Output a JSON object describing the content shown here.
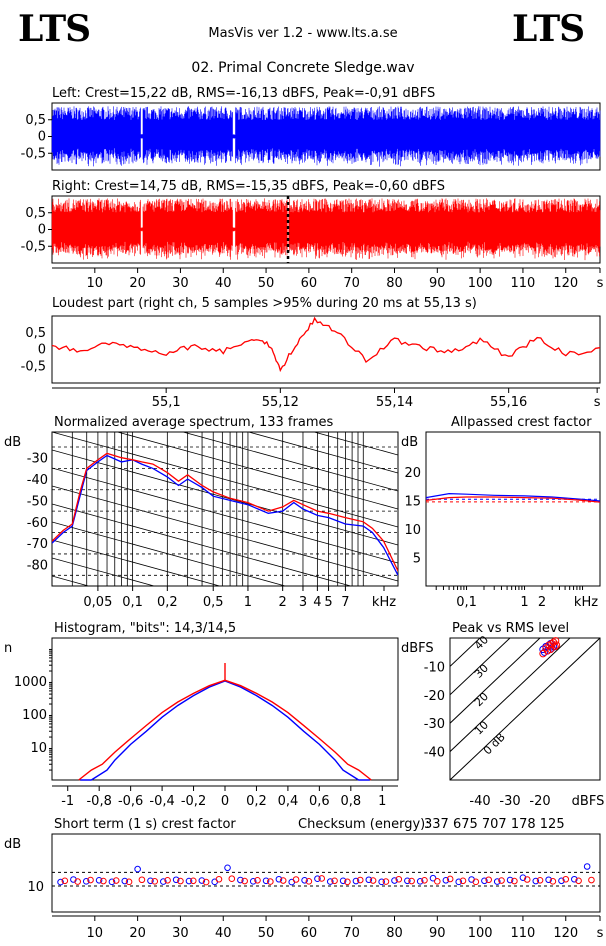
{
  "header": {
    "logo_left": "LTS",
    "logo_right": "LTS",
    "app_title": "MasVis ver 1.2 - www.lts.a.se",
    "file_name": "02. Primal Concrete Sledge.wav"
  },
  "colors": {
    "left": "#0000ff",
    "right": "#ff0000",
    "grid": "#000000"
  },
  "chart_data": [
    {
      "type": "area",
      "panel": "waveform-left",
      "title": "Left: Crest=15,22 dB, RMS=-16,13 dBFS, Peak=-0,91 dBFS",
      "channel": "left",
      "y_ticks": [
        "0,5",
        "0",
        "-0,5"
      ],
      "ylim": [
        -1,
        1
      ],
      "xlim": [
        0,
        128
      ],
      "envelope_peak": 0.9,
      "dropouts_s": [
        21,
        42.5
      ]
    },
    {
      "type": "area",
      "panel": "waveform-right",
      "title": "Right: Crest=14,75 dB, RMS=-15,35 dBFS, Peak=-0,60 dBFS",
      "channel": "right",
      "y_ticks": [
        "0,5",
        "0",
        "-0,5"
      ],
      "ylim": [
        -1,
        1
      ],
      "xlim": [
        0,
        128
      ],
      "envelope_peak": 0.93,
      "dropouts_s": [
        21,
        42.5
      ],
      "marker_s": 55.13,
      "x_ticks": [
        "10",
        "20",
        "30",
        "40",
        "50",
        "60",
        "70",
        "80",
        "90",
        "100",
        "110",
        "120",
        "s"
      ]
    },
    {
      "type": "line",
      "panel": "loudest-part",
      "title": "Loudest part (right ch, 5 samples >95% during 20 ms at 55,13 s)",
      "x_ticks": [
        "55,1",
        "55,12",
        "55,14",
        "55,16",
        "s"
      ],
      "y_ticks": [
        "0,5",
        "0",
        "-0,5"
      ],
      "xlim": [
        55.08,
        55.176
      ],
      "ylim": [
        -1,
        1
      ],
      "series": [
        {
          "x": [
            55.08,
            55.085,
            55.09,
            55.095,
            55.1,
            55.105,
            55.11,
            55.115,
            55.118,
            55.12,
            55.123,
            55.126,
            55.13,
            55.135,
            55.14,
            55.145,
            55.15,
            55.155,
            55.16,
            55.165,
            55.17,
            55.176
          ],
          "values": [
            0.12,
            -0.05,
            0.18,
            0.02,
            -0.1,
            0.1,
            -0.05,
            0.35,
            0.15,
            -0.6,
            0.2,
            0.9,
            0.5,
            -0.3,
            0.28,
            0.05,
            -0.1,
            0.3,
            -0.25,
            0.38,
            -0.15,
            0.02
          ]
        }
      ]
    },
    {
      "type": "line",
      "panel": "spectrum",
      "title": "Normalized average spectrum, 133 frames",
      "ylabel": "dB",
      "xlabel": "kHz",
      "x_ticks": [
        "0,05",
        "0,1",
        "0,2",
        "0,5",
        "1",
        "2",
        "3",
        "4",
        "5",
        "7",
        "kHz"
      ],
      "y_ticks": [
        "-30",
        "-40",
        "-50",
        "-60",
        "-70",
        "-80"
      ],
      "log_x": true,
      "xlim": [
        0.02,
        20
      ],
      "ylim": [
        -90,
        -18
      ],
      "series": [
        {
          "name": "left",
          "x": [
            0.02,
            0.025,
            0.03,
            0.035,
            0.04,
            0.05,
            0.06,
            0.08,
            0.1,
            0.12,
            0.15,
            0.2,
            0.25,
            0.3,
            0.4,
            0.5,
            0.7,
            1,
            1.5,
            2,
            2.5,
            3,
            4,
            5,
            7,
            10,
            12,
            15,
            20
          ],
          "values": [
            -70,
            -65,
            -62,
            -48,
            -36,
            -32,
            -29,
            -32,
            -31,
            -33,
            -35,
            -39,
            -43,
            -40,
            -44,
            -48,
            -50,
            -52,
            -56,
            -55,
            -51,
            -54,
            -57,
            -58,
            -61,
            -62,
            -65,
            -72,
            -85
          ]
        },
        {
          "name": "right",
          "x": [
            0.02,
            0.025,
            0.03,
            0.035,
            0.04,
            0.05,
            0.06,
            0.08,
            0.1,
            0.12,
            0.15,
            0.2,
            0.25,
            0.3,
            0.4,
            0.5,
            0.7,
            1,
            1.5,
            2,
            2.5,
            3,
            4,
            5,
            7,
            10,
            12,
            15,
            20
          ],
          "values": [
            -69,
            -64,
            -61,
            -46,
            -35,
            -31,
            -28,
            -30,
            -31,
            -32,
            -33,
            -37,
            -41,
            -38,
            -43,
            -46,
            -49,
            -51,
            -55,
            -53,
            -50,
            -52,
            -55,
            -56,
            -58,
            -60,
            -63,
            -69,
            -83
          ]
        }
      ]
    },
    {
      "type": "line",
      "panel": "allpassed-crest",
      "title": "Allpassed crest factor",
      "ylabel": "dB",
      "xlabel": "kHz",
      "x_ticks": [
        "0,1",
        "1",
        "2",
        "kHz"
      ],
      "y_ticks": [
        "20",
        "15",
        "10",
        "5"
      ],
      "log_x": true,
      "xlim": [
        0.02,
        20
      ],
      "ylim": [
        0,
        27
      ],
      "series": [
        {
          "name": "left",
          "x": [
            0.02,
            0.05,
            0.1,
            0.3,
            1,
            3,
            10,
            20
          ],
          "values": [
            15.5,
            16.2,
            16.1,
            15.9,
            15.8,
            15.6,
            15.2,
            14.9
          ]
        },
        {
          "name": "right",
          "x": [
            0.02,
            0.05,
            0.1,
            0.3,
            1,
            3,
            10,
            20
          ],
          "values": [
            15.0,
            15.5,
            15.6,
            15.6,
            15.5,
            15.4,
            15.0,
            14.7
          ]
        }
      ],
      "ref_lines": [
        15.22,
        14.75
      ]
    },
    {
      "type": "line",
      "panel": "histogram",
      "title": "Histogram, \"bits\": 14,3/14,5",
      "ylabel": "n",
      "x_ticks": [
        "-1",
        "-0,8",
        "-0,6",
        "-0,4",
        "-0,2",
        "0",
        "0,2",
        "0,4",
        "0,6",
        "0,8",
        "1"
      ],
      "y_ticks": [
        "1000",
        "100",
        "10"
      ],
      "log_y": true,
      "xlim": [
        -1.1,
        1.1
      ],
      "ylim": [
        1,
        20000
      ],
      "series": [
        {
          "name": "left",
          "x": [
            -0.92,
            -0.85,
            -0.75,
            -0.7,
            -0.6,
            -0.5,
            -0.4,
            -0.3,
            -0.2,
            -0.1,
            0,
            0.1,
            0.2,
            0.3,
            0.4,
            0.5,
            0.6,
            0.7,
            0.75,
            0.85,
            0.92
          ],
          "values": [
            1,
            1,
            2,
            4,
            12,
            30,
            80,
            180,
            360,
            650,
            1000,
            650,
            360,
            180,
            80,
            30,
            12,
            4,
            2,
            1,
            1
          ]
        },
        {
          "name": "right",
          "x": [
            -0.93,
            -0.85,
            -0.78,
            -0.7,
            -0.6,
            -0.5,
            -0.4,
            -0.3,
            -0.2,
            -0.1,
            0,
            0.1,
            0.2,
            0.3,
            0.4,
            0.5,
            0.6,
            0.7,
            0.78,
            0.85,
            0.93
          ],
          "values": [
            1,
            2,
            3,
            7,
            18,
            45,
            110,
            230,
            420,
            720,
            1050,
            720,
            420,
            230,
            110,
            45,
            18,
            7,
            3,
            2,
            1
          ]
        }
      ],
      "spike": {
        "x": 0,
        "value": 3500
      }
    },
    {
      "type": "scatter",
      "panel": "peak-vs-rms",
      "title": "Peak vs RMS level",
      "ylabel": "dBFS",
      "xlabel": "dBFS",
      "x_ticks": [
        "-40",
        "-30",
        "-20",
        "dBFS"
      ],
      "y_ticks": [
        "-10",
        "-20",
        "-30",
        "-40"
      ],
      "diagonal_labels": [
        "40",
        "30",
        "20",
        "10",
        "0 dB"
      ],
      "xlim": [
        -50,
        0
      ],
      "ylim": [
        -50,
        0
      ],
      "series": [
        {
          "name": "left",
          "x": [
            -19,
            -18,
            -17,
            -16,
            -18.5,
            -17.5,
            -16.5,
            -15.5
          ],
          "values": [
            -4,
            -3,
            -2.5,
            -3.5,
            -5,
            -4.5,
            -2,
            -3
          ]
        },
        {
          "name": "right",
          "x": [
            -18,
            -17,
            -16,
            -15,
            -17.5,
            -16.5,
            -15.5,
            -14.5,
            -19,
            -14.8
          ],
          "values": [
            -3.5,
            -2.5,
            -2,
            -3,
            -4.5,
            -4,
            -1.5,
            -2.5,
            -5.5,
            -1
          ]
        }
      ]
    },
    {
      "type": "scatter",
      "panel": "short-term-crest",
      "title": "Short term (1 s) crest factor",
      "checksum_label": "Checksum (energy):",
      "checksum_value": "337 675 707 178 125",
      "ylabel": "dB",
      "y_ticks": [
        "10"
      ],
      "x_ticks": [
        "10",
        "20",
        "30",
        "40",
        "50",
        "60",
        "70",
        "80",
        "90",
        "100",
        "110",
        "120",
        "s"
      ],
      "xlim": [
        0,
        128
      ],
      "ylim": [
        0,
        30
      ],
      "series": [
        {
          "name": "left",
          "x": [
            2,
            5,
            8,
            11,
            14,
            17,
            20,
            23,
            26,
            29,
            32,
            35,
            38,
            41,
            44,
            47,
            50,
            53,
            56,
            59,
            62,
            65,
            68,
            71,
            74,
            77,
            80,
            83,
            86,
            89,
            92,
            95,
            98,
            101,
            104,
            107,
            110,
            113,
            116,
            119,
            122,
            125
          ],
          "values": [
            11.5,
            12.5,
            11.8,
            12.2,
            11.6,
            11.9,
            16.5,
            12.0,
            11.7,
            12.4,
            11.9,
            12.1,
            11.6,
            17.0,
            12.3,
            11.8,
            12.0,
            12.6,
            11.5,
            12.2,
            12.8,
            11.7,
            12.0,
            11.9,
            12.4,
            11.6,
            12.1,
            12.0,
            11.8,
            13.0,
            12.2,
            11.6,
            12.5,
            12.0,
            11.7,
            12.3,
            13.2,
            11.9,
            12.4,
            12.0,
            12.6,
            17.5
          ]
        },
        {
          "name": "right",
          "x": [
            3,
            6,
            9,
            12,
            15,
            18,
            21,
            24,
            27,
            30,
            33,
            36,
            39,
            42,
            45,
            48,
            51,
            54,
            57,
            60,
            63,
            66,
            69,
            72,
            75,
            78,
            81,
            84,
            87,
            90,
            93,
            96,
            99,
            102,
            105,
            108,
            111,
            114,
            117,
            120,
            123,
            126
          ],
          "values": [
            12.0,
            11.7,
            12.3,
            11.9,
            12.1,
            11.6,
            12.4,
            11.8,
            12.2,
            11.9,
            12.0,
            11.5,
            12.6,
            12.8,
            11.9,
            12.2,
            11.7,
            12.1,
            12.5,
            11.8,
            12.9,
            12.0,
            11.6,
            12.3,
            12.1,
            11.7,
            12.6,
            11.9,
            12.2,
            11.8,
            12.7,
            12.0,
            11.6,
            12.4,
            12.1,
            11.9,
            12.5,
            12.2,
            11.8,
            12.6,
            12.0,
            12.3
          ]
        }
      ],
      "ref_lines": [
        15.22,
        14.75,
        10
      ]
    }
  ]
}
